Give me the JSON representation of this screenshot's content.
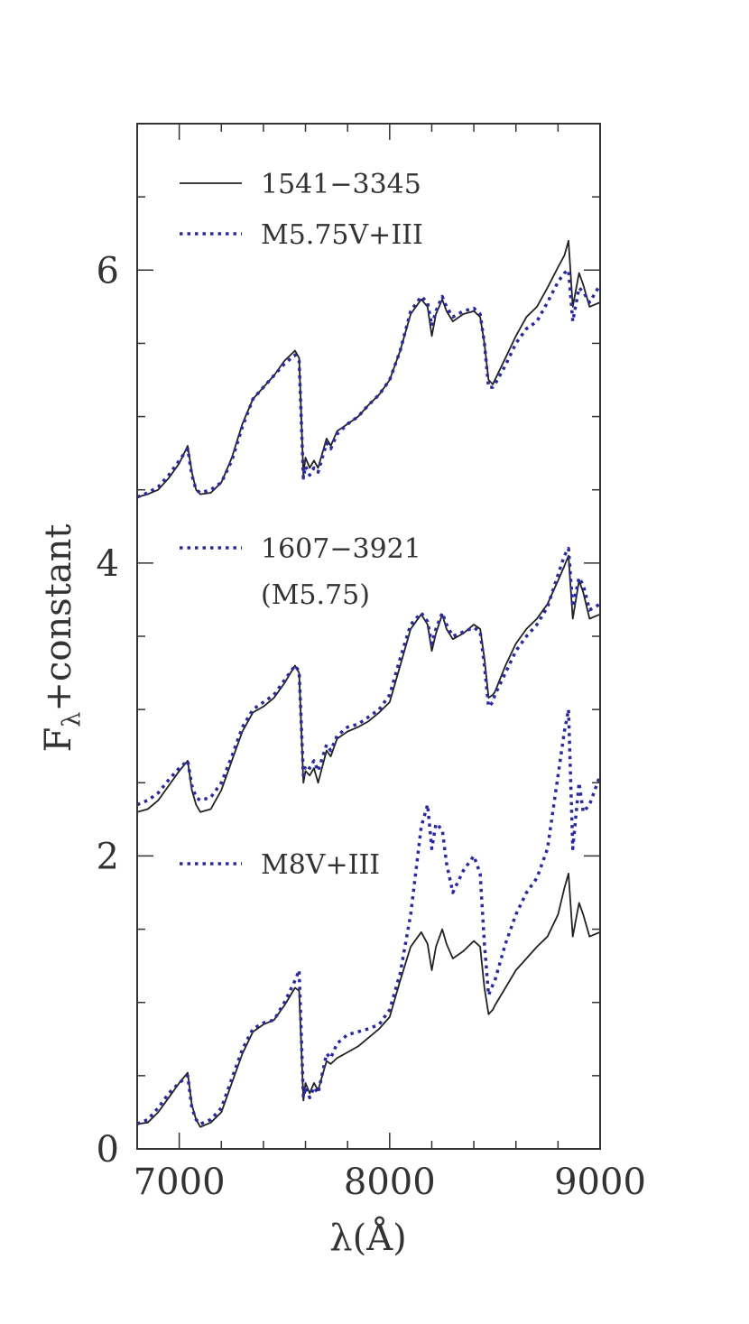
{
  "chart_data": {
    "type": "line",
    "xlabel": "λ(Å)",
    "ylabel_main": "F",
    "ylabel_sub": "λ",
    "ylabel_rest": "+constant",
    "xlim": [
      6800,
      9000
    ],
    "ylim": [
      0,
      7
    ],
    "x_major_ticks": [
      7000,
      8000,
      9000
    ],
    "x_minor_step": 200,
    "y_major_ticks": [
      0,
      2,
      4,
      6
    ],
    "y_minor_step": 0.5,
    "grid": false,
    "colors": {
      "observed": "#222222",
      "template": "#2a2a9e",
      "axis": "#333333"
    },
    "legend": [
      {
        "label": "1541−3345",
        "style": "solid"
      },
      {
        "label": "M5.75V+III",
        "style": "dotted"
      },
      {
        "label": "1607−3921",
        "style": "dotted"
      },
      {
        "label": "(M5.75)",
        "style": "none"
      },
      {
        "label": "M8V+III",
        "style": "dotted"
      }
    ],
    "series": [
      {
        "style": "solid",
        "x": [
          6800,
          6850,
          6900,
          6950,
          7000,
          7040,
          7060,
          7080,
          7100,
          7150,
          7200,
          7250,
          7300,
          7350,
          7400,
          7450,
          7500,
          7550,
          7570,
          7590,
          7600,
          7620,
          7640,
          7660,
          7700,
          7720,
          7750,
          7800,
          7850,
          7900,
          7950,
          8000,
          8050,
          8100,
          8150,
          8180,
          8200,
          8220,
          8250,
          8270,
          8300,
          8350,
          8400,
          8430,
          8450,
          8470,
          8490,
          8500,
          8550,
          8600,
          8650,
          8700,
          8750,
          8800,
          8830,
          8850,
          8870,
          8900,
          8920,
          8950,
          9000
        ],
        "y": [
          4.45,
          4.47,
          4.5,
          4.58,
          4.68,
          4.8,
          4.62,
          4.5,
          4.47,
          4.48,
          4.55,
          4.72,
          4.95,
          5.12,
          5.2,
          5.28,
          5.38,
          5.45,
          5.4,
          4.6,
          4.72,
          4.65,
          4.7,
          4.65,
          4.85,
          4.8,
          4.9,
          4.95,
          5.0,
          5.08,
          5.15,
          5.25,
          5.45,
          5.7,
          5.8,
          5.75,
          5.55,
          5.7,
          5.8,
          5.72,
          5.65,
          5.7,
          5.72,
          5.68,
          5.5,
          5.25,
          5.22,
          5.25,
          5.4,
          5.55,
          5.68,
          5.75,
          5.88,
          6.02,
          6.1,
          6.2,
          5.75,
          5.98,
          5.9,
          5.75,
          5.78
        ]
      },
      {
        "style": "dotted",
        "x": [
          6800,
          6850,
          6900,
          6950,
          7000,
          7040,
          7060,
          7080,
          7100,
          7150,
          7200,
          7250,
          7300,
          7350,
          7400,
          7450,
          7500,
          7550,
          7570,
          7590,
          7600,
          7620,
          7640,
          7660,
          7700,
          7720,
          7750,
          7800,
          7850,
          7900,
          7950,
          8000,
          8050,
          8100,
          8150,
          8180,
          8200,
          8220,
          8250,
          8270,
          8300,
          8350,
          8400,
          8430,
          8450,
          8470,
          8490,
          8500,
          8550,
          8600,
          8650,
          8700,
          8750,
          8800,
          8830,
          8850,
          8870,
          8900,
          8920,
          8950,
          9000
        ],
        "y": [
          4.45,
          4.48,
          4.52,
          4.6,
          4.7,
          4.78,
          4.6,
          4.5,
          4.48,
          4.5,
          4.55,
          4.7,
          4.93,
          5.12,
          5.2,
          5.28,
          5.36,
          5.42,
          5.38,
          4.58,
          4.66,
          4.6,
          4.65,
          4.62,
          4.82,
          4.78,
          4.88,
          4.95,
          5.0,
          5.08,
          5.15,
          5.25,
          5.45,
          5.72,
          5.82,
          5.78,
          5.62,
          5.72,
          5.82,
          5.75,
          5.68,
          5.72,
          5.74,
          5.7,
          5.5,
          5.2,
          5.2,
          5.22,
          5.35,
          5.5,
          5.6,
          5.65,
          5.78,
          5.92,
          5.98,
          6.0,
          5.65,
          5.88,
          5.85,
          5.78,
          5.9
        ]
      },
      {
        "style": "solid",
        "x": [
          6800,
          6850,
          6900,
          6950,
          7000,
          7040,
          7060,
          7080,
          7100,
          7150,
          7200,
          7250,
          7300,
          7350,
          7400,
          7450,
          7500,
          7550,
          7570,
          7590,
          7600,
          7620,
          7640,
          7660,
          7700,
          7720,
          7750,
          7800,
          7850,
          7900,
          7950,
          8000,
          8050,
          8100,
          8150,
          8180,
          8200,
          8220,
          8250,
          8270,
          8300,
          8350,
          8400,
          8430,
          8450,
          8470,
          8490,
          8500,
          8550,
          8600,
          8650,
          8700,
          8750,
          8800,
          8830,
          8850,
          8870,
          8900,
          8920,
          8950,
          9000
        ],
        "y": [
          2.3,
          2.32,
          2.38,
          2.48,
          2.58,
          2.65,
          2.45,
          2.35,
          2.3,
          2.32,
          2.45,
          2.65,
          2.85,
          2.98,
          3.02,
          3.08,
          3.18,
          3.3,
          3.25,
          2.5,
          2.58,
          2.55,
          2.6,
          2.5,
          2.72,
          2.68,
          2.8,
          2.85,
          2.88,
          2.92,
          2.98,
          3.05,
          3.3,
          3.55,
          3.65,
          3.58,
          3.4,
          3.52,
          3.65,
          3.55,
          3.48,
          3.52,
          3.58,
          3.55,
          3.35,
          3.08,
          3.1,
          3.12,
          3.3,
          3.45,
          3.55,
          3.62,
          3.72,
          3.88,
          3.98,
          4.05,
          3.62,
          3.88,
          3.8,
          3.62,
          3.65
        ]
      },
      {
        "style": "dotted",
        "x": [
          6800,
          6850,
          6900,
          6950,
          7000,
          7040,
          7060,
          7080,
          7100,
          7150,
          7200,
          7250,
          7300,
          7350,
          7400,
          7450,
          7500,
          7550,
          7570,
          7590,
          7600,
          7620,
          7640,
          7660,
          7700,
          7720,
          7750,
          7800,
          7850,
          7900,
          7950,
          8000,
          8050,
          8100,
          8150,
          8180,
          8200,
          8220,
          8250,
          8270,
          8300,
          8350,
          8400,
          8430,
          8450,
          8470,
          8490,
          8500,
          8550,
          8600,
          8650,
          8700,
          8750,
          8800,
          8830,
          8850,
          8870,
          8900,
          8920,
          8950,
          9000
        ],
        "y": [
          2.35,
          2.38,
          2.43,
          2.52,
          2.6,
          2.65,
          2.48,
          2.4,
          2.38,
          2.4,
          2.5,
          2.68,
          2.88,
          3.0,
          3.05,
          3.1,
          3.2,
          3.3,
          3.26,
          2.55,
          2.62,
          2.6,
          2.65,
          2.58,
          2.76,
          2.72,
          2.82,
          2.88,
          2.9,
          2.95,
          3.0,
          3.1,
          3.35,
          3.58,
          3.66,
          3.6,
          3.45,
          3.55,
          3.66,
          3.58,
          3.5,
          3.53,
          3.56,
          3.53,
          3.3,
          3.02,
          3.05,
          3.1,
          3.25,
          3.4,
          3.5,
          3.58,
          3.7,
          3.92,
          4.05,
          4.1,
          3.7,
          3.9,
          3.85,
          3.68,
          3.72
        ]
      },
      {
        "style": "solid",
        "x": [
          6800,
          6850,
          6900,
          6950,
          7000,
          7040,
          7060,
          7080,
          7100,
          7150,
          7200,
          7250,
          7300,
          7350,
          7400,
          7450,
          7500,
          7550,
          7570,
          7590,
          7600,
          7620,
          7640,
          7660,
          7700,
          7720,
          7750,
          7800,
          7850,
          7900,
          7950,
          8000,
          8050,
          8100,
          8150,
          8180,
          8200,
          8220,
          8250,
          8270,
          8300,
          8350,
          8400,
          8430,
          8450,
          8470,
          8490,
          8500,
          8550,
          8600,
          8650,
          8700,
          8750,
          8800,
          8830,
          8850,
          8870,
          8900,
          8920,
          8950,
          9000
        ],
        "y": [
          0.17,
          0.18,
          0.25,
          0.35,
          0.45,
          0.52,
          0.3,
          0.2,
          0.15,
          0.18,
          0.25,
          0.45,
          0.65,
          0.8,
          0.85,
          0.88,
          0.98,
          1.1,
          1.08,
          0.33,
          0.45,
          0.38,
          0.45,
          0.4,
          0.6,
          0.58,
          0.62,
          0.66,
          0.7,
          0.76,
          0.82,
          0.9,
          1.15,
          1.38,
          1.48,
          1.4,
          1.22,
          1.38,
          1.5,
          1.4,
          1.3,
          1.35,
          1.42,
          1.38,
          1.1,
          0.92,
          0.95,
          0.98,
          1.1,
          1.22,
          1.3,
          1.38,
          1.45,
          1.6,
          1.78,
          1.88,
          1.45,
          1.68,
          1.6,
          1.45,
          1.48
        ]
      },
      {
        "style": "dotted",
        "x": [
          6800,
          6850,
          6900,
          6950,
          7000,
          7040,
          7060,
          7080,
          7100,
          7150,
          7200,
          7250,
          7300,
          7350,
          7400,
          7450,
          7500,
          7550,
          7570,
          7590,
          7600,
          7620,
          7640,
          7660,
          7700,
          7720,
          7750,
          7800,
          7850,
          7900,
          7950,
          8000,
          8050,
          8100,
          8150,
          8180,
          8200,
          8220,
          8250,
          8270,
          8300,
          8350,
          8400,
          8430,
          8450,
          8470,
          8490,
          8500,
          8550,
          8600,
          8650,
          8700,
          8750,
          8800,
          8830,
          8850,
          8870,
          8900,
          8920,
          8950,
          9000
        ],
        "y": [
          0.17,
          0.2,
          0.28,
          0.38,
          0.45,
          0.5,
          0.28,
          0.2,
          0.17,
          0.2,
          0.28,
          0.48,
          0.68,
          0.82,
          0.86,
          0.88,
          1.0,
          1.15,
          1.22,
          0.35,
          0.42,
          0.35,
          0.42,
          0.38,
          0.65,
          0.62,
          0.72,
          0.78,
          0.8,
          0.82,
          0.85,
          0.95,
          1.2,
          1.6,
          2.2,
          2.35,
          2.05,
          2.22,
          2.18,
          1.95,
          1.75,
          1.9,
          2.0,
          1.88,
          1.4,
          1.05,
          1.12,
          1.15,
          1.4,
          1.6,
          1.75,
          1.85,
          2.05,
          2.55,
          2.85,
          3.0,
          2.05,
          2.5,
          2.3,
          2.35,
          2.55
        ]
      }
    ]
  }
}
